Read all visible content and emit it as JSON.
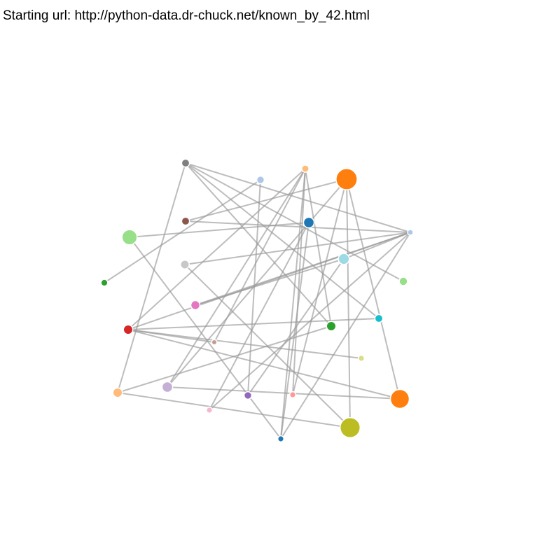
{
  "header": {
    "starting_url_label": "Starting url:",
    "starting_url": "http://python-data.dr-chuck.net/known_by_42.html"
  },
  "graph": {
    "nodes": [
      {
        "id": "n0",
        "color": "#ff7f0e",
        "rank": 5.6
      },
      {
        "id": "n1",
        "color": "#7f7f7f",
        "rank": 2.1
      },
      {
        "id": "n2",
        "color": "#aec7e8",
        "rank": 2.0
      },
      {
        "id": "n3",
        "color": "#ffbb78",
        "rank": 1.9
      },
      {
        "id": "n4",
        "color": "#8c564b",
        "rank": 2.1
      },
      {
        "id": "n5",
        "color": "#1f77b4",
        "rank": 2.8
      },
      {
        "id": "n6",
        "color": "#98df8a",
        "rank": 4.0
      },
      {
        "id": "n7",
        "color": "#aec7e8",
        "rank": 1.5
      },
      {
        "id": "n8",
        "color": "#c7c7c7",
        "rank": 2.3
      },
      {
        "id": "n9",
        "color": "#9edae5",
        "rank": 2.9
      },
      {
        "id": "n10",
        "color": "#2ca02c",
        "rank": 1.8
      },
      {
        "id": "n11",
        "color": "#98df8a",
        "rank": 2.2
      },
      {
        "id": "n12",
        "color": "#e377c2",
        "rank": 2.4
      },
      {
        "id": "n13",
        "color": "#17becf",
        "rank": 2.1
      },
      {
        "id": "n14",
        "color": "#d62728",
        "rank": 2.5
      },
      {
        "id": "n15",
        "color": "#2ca02c",
        "rank": 2.5
      },
      {
        "id": "n16",
        "color": "#c49c94",
        "rank": 1.4
      },
      {
        "id": "n17",
        "color": "#dbdb8d",
        "rank": 1.6
      },
      {
        "id": "n18",
        "color": "#ffbb78",
        "rank": 2.5
      },
      {
        "id": "n19",
        "color": "#c5b0d5",
        "rank": 2.8
      },
      {
        "id": "n20",
        "color": "#9467bd",
        "rank": 2.0
      },
      {
        "id": "n21",
        "color": "#ff9896",
        "rank": 1.6
      },
      {
        "id": "n22",
        "color": "#ff7f0e",
        "rank": 5.0
      },
      {
        "id": "n23",
        "color": "#f7b6d2",
        "rank": 1.6
      },
      {
        "id": "n24",
        "color": "#bcbd22",
        "rank": 5.3
      },
      {
        "id": "n25",
        "color": "#1f77b4",
        "rank": 1.6
      }
    ],
    "links": [
      [
        "n1",
        "n7"
      ],
      [
        "n1",
        "n11"
      ],
      [
        "n1",
        "n13"
      ],
      [
        "n1",
        "n15"
      ],
      [
        "n1",
        "n18"
      ],
      [
        "n3",
        "n15"
      ],
      [
        "n3",
        "n19"
      ],
      [
        "n3",
        "n21"
      ],
      [
        "n3",
        "n25"
      ],
      [
        "n3",
        "n16"
      ],
      [
        "n3",
        "n14"
      ],
      [
        "n0",
        "n22"
      ],
      [
        "n0",
        "n24"
      ],
      [
        "n0",
        "n4"
      ],
      [
        "n0",
        "n21"
      ],
      [
        "n0",
        "n19"
      ],
      [
        "n7",
        "n4"
      ],
      [
        "n7",
        "n8"
      ],
      [
        "n7",
        "n9"
      ],
      [
        "n7",
        "n12"
      ],
      [
        "n7",
        "n14"
      ],
      [
        "n7",
        "n25"
      ],
      [
        "n7",
        "n23"
      ],
      [
        "n5",
        "n6"
      ],
      [
        "n5",
        "n25"
      ],
      [
        "n5",
        "n23"
      ],
      [
        "n9",
        "n12"
      ],
      [
        "n9",
        "n20"
      ],
      [
        "n2",
        "n10"
      ],
      [
        "n2",
        "n20"
      ],
      [
        "n8",
        "n24"
      ],
      [
        "n14",
        "n13"
      ],
      [
        "n14",
        "n17"
      ],
      [
        "n14",
        "n22"
      ],
      [
        "n14",
        "n16"
      ],
      [
        "n6",
        "n25"
      ],
      [
        "n15",
        "n18"
      ],
      [
        "n19",
        "n22"
      ],
      [
        "n18",
        "n24"
      ]
    ]
  }
}
